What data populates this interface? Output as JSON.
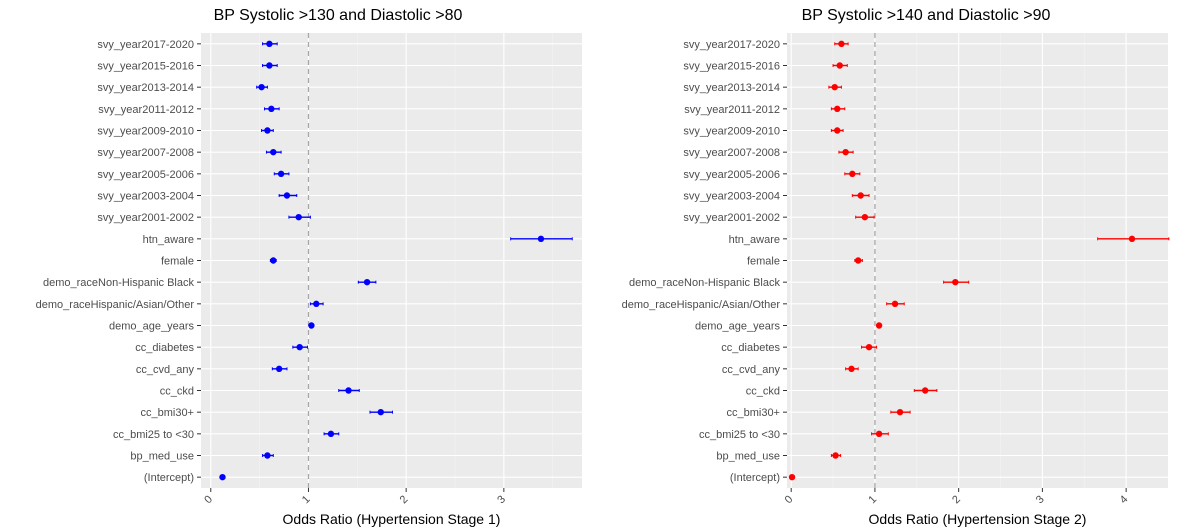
{
  "chart_data": [
    {
      "type": "scatter",
      "subtype": "forest-plot",
      "title": "BP Systolic >130 and Diastolic >80",
      "xlabel": "Odds Ratio (Hypertension Stage 1)",
      "ylabel": "",
      "xlim": [
        -0.1,
        3.8
      ],
      "xticks": [
        0,
        1,
        2,
        3
      ],
      "reference_line": 1,
      "point_color": "#0000ff",
      "panel_background": "#ebebeb",
      "grid": true,
      "categories": [
        "svy_year2017-2020",
        "svy_year2015-2016",
        "svy_year2013-2014",
        "svy_year2011-2012",
        "svy_year2009-2010",
        "svy_year2007-2008",
        "svy_year2005-2006",
        "svy_year2003-2004",
        "svy_year2001-2002",
        "htn_aware",
        "female",
        "demo_raceNon-Hispanic Black",
        "demo_raceHispanic/Asian/Other",
        "demo_age_years",
        "cc_diabetes",
        "cc_cvd_any",
        "cc_ckd",
        "cc_bmi30+",
        "cc_bmi25 to <30",
        "bp_med_use",
        "(Intercept)"
      ],
      "estimates": [
        0.6,
        0.6,
        0.52,
        0.62,
        0.58,
        0.64,
        0.72,
        0.78,
        0.9,
        3.38,
        0.64,
        1.6,
        1.08,
        1.03,
        0.91,
        0.7,
        1.41,
        1.74,
        1.23,
        0.58,
        0.12
      ],
      "ci_lower": [
        0.53,
        0.53,
        0.47,
        0.55,
        0.52,
        0.57,
        0.65,
        0.7,
        0.8,
        3.07,
        0.61,
        1.51,
        1.02,
        1.02,
        0.84,
        0.63,
        1.31,
        1.63,
        1.16,
        0.53,
        0.11
      ],
      "ci_upper": [
        0.68,
        0.68,
        0.58,
        0.7,
        0.64,
        0.72,
        0.8,
        0.88,
        1.02,
        3.7,
        0.67,
        1.69,
        1.15,
        1.04,
        0.99,
        0.78,
        1.52,
        1.86,
        1.31,
        0.64,
        0.13
      ]
    },
    {
      "type": "scatter",
      "subtype": "forest-plot",
      "title": "BP Systolic >140 and Diastolic >90",
      "xlabel": "Odds Ratio (Hypertension Stage 2)",
      "ylabel": "",
      "xlim": [
        -0.05,
        4.5
      ],
      "xticks": [
        0,
        1,
        2,
        3,
        4
      ],
      "reference_line": 1,
      "point_color": "#ff0000",
      "panel_background": "#ebebeb",
      "grid": true,
      "categories": [
        "svy_year2017-2020",
        "svy_year2015-2016",
        "svy_year2013-2014",
        "svy_year2011-2012",
        "svy_year2009-2010",
        "svy_year2007-2008",
        "svy_year2005-2006",
        "svy_year2003-2004",
        "svy_year2001-2002",
        "htn_aware",
        "female",
        "demo_raceNon-Hispanic Black",
        "demo_raceHispanic/Asian/Other",
        "demo_age_years",
        "cc_diabetes",
        "cc_cvd_any",
        "cc_ckd",
        "cc_bmi30+",
        "cc_bmi25 to <30",
        "bp_med_use",
        "(Intercept)"
      ],
      "estimates": [
        0.6,
        0.58,
        0.52,
        0.55,
        0.55,
        0.65,
        0.73,
        0.83,
        0.88,
        4.07,
        0.8,
        1.96,
        1.24,
        1.05,
        0.93,
        0.72,
        1.6,
        1.3,
        1.05,
        0.53,
        0.01
      ],
      "ci_lower": [
        0.52,
        0.5,
        0.45,
        0.48,
        0.48,
        0.57,
        0.64,
        0.73,
        0.77,
        3.66,
        0.76,
        1.82,
        1.14,
        1.03,
        0.84,
        0.65,
        1.47,
        1.19,
        0.96,
        0.48,
        0.0
      ],
      "ci_upper": [
        0.68,
        0.67,
        0.6,
        0.64,
        0.62,
        0.74,
        0.82,
        0.93,
        0.99,
        4.51,
        0.85,
        2.12,
        1.35,
        1.07,
        1.02,
        0.8,
        1.74,
        1.42,
        1.16,
        0.59,
        0.02
      ]
    }
  ]
}
